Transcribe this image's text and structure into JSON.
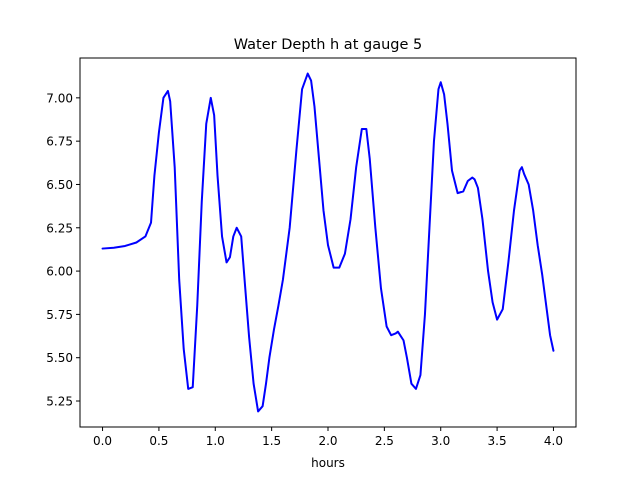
{
  "chart_data": {
    "type": "line",
    "title": "Water Depth h at gauge 5",
    "xlabel": "hours",
    "ylabel": "",
    "xlim": [
      -0.2,
      4.2
    ],
    "ylim": [
      5.1,
      7.23
    ],
    "xticks": [
      0.0,
      0.5,
      1.0,
      1.5,
      2.0,
      2.5,
      3.0,
      3.5,
      4.0
    ],
    "xtick_labels": [
      "0.0",
      "0.5",
      "1.0",
      "1.5",
      "2.0",
      "2.5",
      "3.0",
      "3.5",
      "4.0"
    ],
    "yticks": [
      5.25,
      5.5,
      5.75,
      6.0,
      6.25,
      6.5,
      6.75,
      7.0
    ],
    "ytick_labels": [
      "5.25",
      "5.50",
      "5.75",
      "6.00",
      "6.25",
      "6.50",
      "6.75",
      "7.00"
    ],
    "grid": false,
    "series": [
      {
        "color": "#0000ff",
        "x": [
          0.0,
          0.1,
          0.2,
          0.3,
          0.38,
          0.43,
          0.46,
          0.5,
          0.54,
          0.58,
          0.6,
          0.64,
          0.68,
          0.72,
          0.76,
          0.8,
          0.84,
          0.88,
          0.92,
          0.96,
          0.99,
          1.02,
          1.06,
          1.1,
          1.13,
          1.16,
          1.19,
          1.23,
          1.26,
          1.3,
          1.34,
          1.38,
          1.42,
          1.45,
          1.48,
          1.52,
          1.56,
          1.6,
          1.66,
          1.72,
          1.77,
          1.82,
          1.85,
          1.88,
          1.92,
          1.96,
          2.0,
          2.05,
          2.1,
          2.15,
          2.2,
          2.25,
          2.3,
          2.34,
          2.37,
          2.42,
          2.47,
          2.52,
          2.56,
          2.6,
          2.62,
          2.64,
          2.67,
          2.7,
          2.74,
          2.78,
          2.82,
          2.86,
          2.9,
          2.94,
          2.98,
          3.0,
          3.03,
          3.06,
          3.1,
          3.15,
          3.2,
          3.24,
          3.28,
          3.3,
          3.33,
          3.37,
          3.42,
          3.46,
          3.5,
          3.55,
          3.6,
          3.65,
          3.7,
          3.72,
          3.74,
          3.78,
          3.82,
          3.86,
          3.9,
          3.94,
          3.97,
          4.0
        ],
        "y": [
          6.13,
          6.135,
          6.145,
          6.165,
          6.2,
          6.28,
          6.55,
          6.8,
          7.0,
          7.04,
          6.98,
          6.6,
          5.95,
          5.55,
          5.32,
          5.33,
          5.8,
          6.4,
          6.85,
          7.0,
          6.9,
          6.55,
          6.2,
          6.05,
          6.08,
          6.2,
          6.25,
          6.2,
          5.95,
          5.62,
          5.35,
          5.19,
          5.22,
          5.35,
          5.5,
          5.66,
          5.8,
          5.95,
          6.25,
          6.7,
          7.05,
          7.14,
          7.1,
          6.95,
          6.65,
          6.35,
          6.15,
          6.02,
          6.02,
          6.1,
          6.3,
          6.6,
          6.82,
          6.82,
          6.65,
          6.25,
          5.9,
          5.68,
          5.63,
          5.64,
          5.65,
          5.63,
          5.6,
          5.5,
          5.35,
          5.32,
          5.4,
          5.75,
          6.25,
          6.75,
          7.05,
          7.09,
          7.02,
          6.85,
          6.58,
          6.45,
          6.46,
          6.52,
          6.54,
          6.53,
          6.48,
          6.3,
          6.0,
          5.82,
          5.72,
          5.78,
          6.05,
          6.35,
          6.58,
          6.6,
          6.56,
          6.5,
          6.35,
          6.15,
          5.98,
          5.78,
          5.63,
          5.54
        ]
      }
    ]
  }
}
